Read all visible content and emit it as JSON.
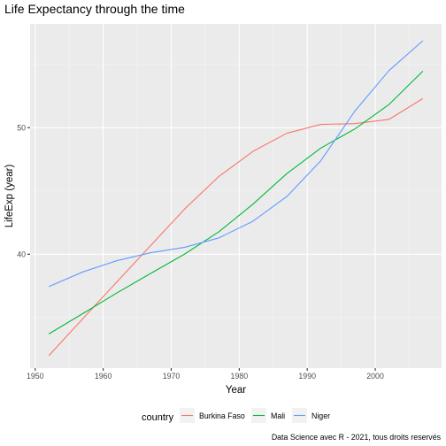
{
  "chart_data": {
    "type": "line",
    "title": "Life Expectancy through the time",
    "xlabel": "Year",
    "ylabel": "LifeExp (year)",
    "caption": "Data Science avec R - 2021, tous droits reservés",
    "legend_title": "country",
    "legend_position": "bottom",
    "grid": true,
    "xlim": [
      1949.25,
      2009.75
    ],
    "ylim": [
      31.0,
      58.2
    ],
    "x_ticks": [
      1950,
      1960,
      1970,
      1980,
      1990,
      2000
    ],
    "y_ticks": [
      40,
      50
    ],
    "x": [
      1952,
      1957,
      1962,
      1967,
      1972,
      1977,
      1982,
      1987,
      1992,
      1997,
      2002,
      2007
    ],
    "series": [
      {
        "name": "Burkina Faso",
        "color": "#F8766D",
        "values": [
          31.98,
          34.91,
          37.81,
          40.7,
          43.59,
          46.14,
          48.12,
          49.56,
          50.26,
          50.32,
          50.65,
          52.3
        ]
      },
      {
        "name": "Mali",
        "color": "#00BA38",
        "values": [
          33.7,
          35.31,
          36.94,
          38.49,
          40.02,
          41.77,
          43.95,
          46.37,
          48.39,
          49.9,
          51.82,
          54.47
        ]
      },
      {
        "name": "Niger",
        "color": "#619CFF",
        "values": [
          37.44,
          38.6,
          39.49,
          40.12,
          40.55,
          41.29,
          42.6,
          44.56,
          47.39,
          51.31,
          54.5,
          56.87
        ]
      }
    ]
  }
}
